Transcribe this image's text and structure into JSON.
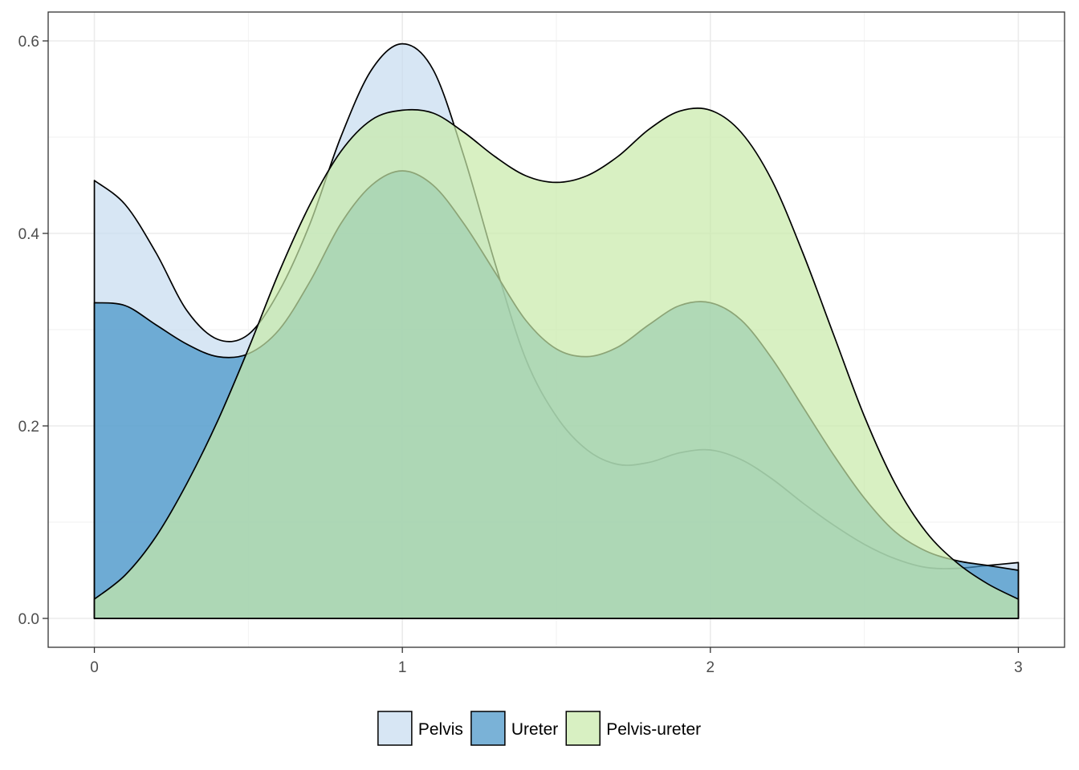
{
  "chart_data": {
    "type": "area",
    "title": "",
    "xlabel": "",
    "ylabel": "",
    "xlim": [
      -0.15,
      3.15
    ],
    "ylim": [
      -0.03,
      0.63
    ],
    "x_ticks": [
      0,
      1,
      2,
      3
    ],
    "x_tick_labels": [
      "0",
      "1",
      "2",
      "3"
    ],
    "y_ticks": [
      0.0,
      0.2,
      0.4,
      0.6
    ],
    "y_tick_labels": [
      "0.0",
      "0.2",
      "0.4",
      "0.6"
    ],
    "grid": true,
    "legend_position": "bottom",
    "series": [
      {
        "name": "Pelvis",
        "color": "#c6dbef",
        "points": [
          [
            0,
            0.455
          ],
          [
            0.1,
            0.43
          ],
          [
            0.2,
            0.38
          ],
          [
            0.3,
            0.32
          ],
          [
            0.4,
            0.29
          ],
          [
            0.5,
            0.295
          ],
          [
            0.6,
            0.34
          ],
          [
            0.7,
            0.41
          ],
          [
            0.8,
            0.5
          ],
          [
            0.9,
            0.57
          ],
          [
            1.0,
            0.597
          ],
          [
            1.1,
            0.57
          ],
          [
            1.2,
            0.48
          ],
          [
            1.3,
            0.37
          ],
          [
            1.4,
            0.27
          ],
          [
            1.5,
            0.21
          ],
          [
            1.6,
            0.175
          ],
          [
            1.7,
            0.16
          ],
          [
            1.8,
            0.162
          ],
          [
            1.9,
            0.172
          ],
          [
            2.0,
            0.175
          ],
          [
            2.1,
            0.165
          ],
          [
            2.2,
            0.145
          ],
          [
            2.3,
            0.12
          ],
          [
            2.4,
            0.097
          ],
          [
            2.5,
            0.077
          ],
          [
            2.6,
            0.062
          ],
          [
            2.7,
            0.053
          ],
          [
            2.8,
            0.052
          ],
          [
            2.9,
            0.055
          ],
          [
            3.0,
            0.058
          ]
        ]
      },
      {
        "name": "Ureter",
        "color": "#4292c6",
        "points": [
          [
            0,
            0.328
          ],
          [
            0.1,
            0.325
          ],
          [
            0.2,
            0.305
          ],
          [
            0.3,
            0.285
          ],
          [
            0.4,
            0.272
          ],
          [
            0.5,
            0.275
          ],
          [
            0.6,
            0.3
          ],
          [
            0.7,
            0.35
          ],
          [
            0.8,
            0.41
          ],
          [
            0.9,
            0.45
          ],
          [
            1.0,
            0.465
          ],
          [
            1.1,
            0.45
          ],
          [
            1.2,
            0.41
          ],
          [
            1.3,
            0.36
          ],
          [
            1.4,
            0.31
          ],
          [
            1.5,
            0.28
          ],
          [
            1.6,
            0.272
          ],
          [
            1.7,
            0.282
          ],
          [
            1.8,
            0.305
          ],
          [
            1.9,
            0.325
          ],
          [
            2.0,
            0.328
          ],
          [
            2.1,
            0.31
          ],
          [
            2.2,
            0.27
          ],
          [
            2.3,
            0.22
          ],
          [
            2.4,
            0.17
          ],
          [
            2.5,
            0.125
          ],
          [
            2.6,
            0.09
          ],
          [
            2.7,
            0.07
          ],
          [
            2.8,
            0.06
          ],
          [
            2.9,
            0.055
          ],
          [
            3.0,
            0.05
          ]
        ]
      },
      {
        "name": "Pelvis-ureter",
        "color": "#c7e9a8",
        "points": [
          [
            0,
            0.02
          ],
          [
            0.1,
            0.045
          ],
          [
            0.2,
            0.085
          ],
          [
            0.3,
            0.14
          ],
          [
            0.4,
            0.205
          ],
          [
            0.5,
            0.28
          ],
          [
            0.6,
            0.36
          ],
          [
            0.7,
            0.43
          ],
          [
            0.8,
            0.485
          ],
          [
            0.9,
            0.518
          ],
          [
            1.0,
            0.528
          ],
          [
            1.1,
            0.525
          ],
          [
            1.2,
            0.505
          ],
          [
            1.3,
            0.48
          ],
          [
            1.4,
            0.46
          ],
          [
            1.5,
            0.453
          ],
          [
            1.6,
            0.46
          ],
          [
            1.7,
            0.48
          ],
          [
            1.8,
            0.508
          ],
          [
            1.9,
            0.527
          ],
          [
            2.0,
            0.528
          ],
          [
            2.1,
            0.505
          ],
          [
            2.2,
            0.455
          ],
          [
            2.3,
            0.38
          ],
          [
            2.4,
            0.295
          ],
          [
            2.5,
            0.21
          ],
          [
            2.6,
            0.14
          ],
          [
            2.7,
            0.09
          ],
          [
            2.8,
            0.058
          ],
          [
            2.9,
            0.036
          ],
          [
            3.0,
            0.02
          ]
        ]
      }
    ]
  }
}
